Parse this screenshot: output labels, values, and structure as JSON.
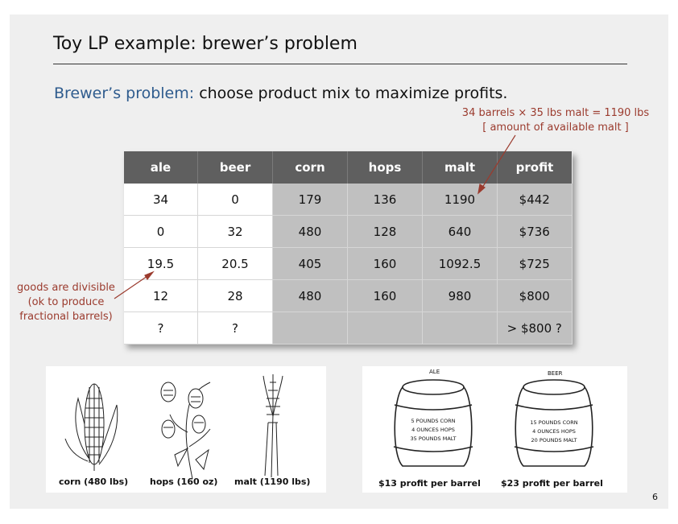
{
  "slide": {
    "title": "Toy LP example:  brewer’s problem",
    "subtitle_lead": "Brewer’s problem:",
    "subtitle_rest": " choose product mix to maximize profits.",
    "page_number": "6"
  },
  "annotations": {
    "malt_line1": "34 barrels × 35 lbs malt  = 1190 lbs",
    "malt_line2": "[ amount of available malt ]",
    "divisible_line1": "goods are divisible",
    "divisible_line2": "(ok to produce",
    "divisible_line3": "fractional barrels)"
  },
  "table": {
    "headers": [
      "ale",
      "beer",
      "corn",
      "hops",
      "malt",
      "profit"
    ],
    "rows": [
      [
        "34",
        "0",
        "179",
        "136",
        "1190",
        "$442"
      ],
      [
        "0",
        "32",
        "480",
        "128",
        "640",
        "$736"
      ],
      [
        "19.5",
        "20.5",
        "405",
        "160",
        "1092.5",
        "$725"
      ],
      [
        "12",
        "28",
        "480",
        "160",
        "980",
        "$800"
      ],
      [
        "?",
        "?",
        "",
        "",
        "",
        "> $800 ?"
      ]
    ]
  },
  "resources": {
    "corn_caption": "corn (480 lbs)",
    "hops_caption": "hops (160 oz)",
    "malt_caption": "malt (1190 lbs)"
  },
  "barrels": {
    "ale": {
      "label": "ALE",
      "line1": "5 POUNDS CORN",
      "line2": "4 OUNCES HOPS",
      "line3": "35 POUNDS MALT",
      "caption": "$13 profit per barrel"
    },
    "beer": {
      "label": "BEER",
      "line1": "15 POUNDS CORN",
      "line2": "4 OUNCES HOPS",
      "line3": "20 POUNDS MALT",
      "caption": "$23 profit per barrel"
    }
  },
  "colors": {
    "accent_blue": "#2f5c8e",
    "annotation_red": "#9b3b2e",
    "header_gray": "#5f5f5f",
    "shaded_cell": "#c0c0c0"
  },
  "icons": [
    "corn-illustration",
    "hops-illustration",
    "malt-illustration",
    "ale-barrel-illustration",
    "beer-barrel-illustration"
  ]
}
